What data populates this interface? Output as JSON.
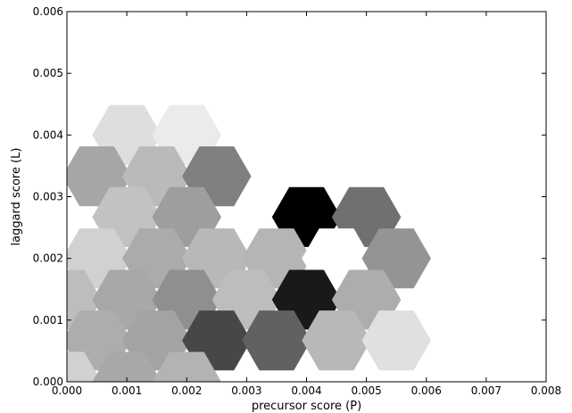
{
  "chart_data": {
    "type": "heatmap",
    "subtype": "hexbin",
    "title": "",
    "xlabel": "precursor score (P)",
    "ylabel": "laggard score (L)",
    "xlim": [
      0,
      0.008
    ],
    "ylim": [
      0,
      0.006
    ],
    "xticks": [
      "0.000",
      "0.001",
      "0.002",
      "0.003",
      "0.004",
      "0.005",
      "0.006",
      "0.007",
      "0.008"
    ],
    "yticks": [
      "0.000",
      "0.001",
      "0.002",
      "0.003",
      "0.004",
      "0.005",
      "0.006"
    ],
    "grid": false,
    "colormap": "gray_r",
    "hex_radius_x": 0.000577,
    "hexes": [
      {
        "x": 0.001,
        "y": 0.004,
        "density": 0.13
      },
      {
        "x": 0.002,
        "y": 0.004,
        "density": 0.08
      },
      {
        "x": 0.0005,
        "y": 0.00333,
        "density": 0.35
      },
      {
        "x": 0.0015,
        "y": 0.00333,
        "density": 0.27
      },
      {
        "x": 0.0025,
        "y": 0.00333,
        "density": 0.5
      },
      {
        "x": 0.001,
        "y": 0.00267,
        "density": 0.24
      },
      {
        "x": 0.002,
        "y": 0.00267,
        "density": 0.38
      },
      {
        "x": 0.004,
        "y": 0.00267,
        "density": 1.0
      },
      {
        "x": 0.005,
        "y": 0.00267,
        "density": 0.56
      },
      {
        "x": 0.0005,
        "y": 0.002,
        "density": 0.18
      },
      {
        "x": 0.0015,
        "y": 0.002,
        "density": 0.33
      },
      {
        "x": 0.0025,
        "y": 0.002,
        "density": 0.28
      },
      {
        "x": 0.0035,
        "y": 0.002,
        "density": 0.29
      },
      {
        "x": 0.0045,
        "y": 0.002,
        "density": 0.0
      },
      {
        "x": 0.0055,
        "y": 0.002,
        "density": 0.42
      },
      {
        "x": 0.0,
        "y": 0.00133,
        "density": 0.26
      },
      {
        "x": 0.001,
        "y": 0.00133,
        "density": 0.34
      },
      {
        "x": 0.002,
        "y": 0.00133,
        "density": 0.44
      },
      {
        "x": 0.003,
        "y": 0.00133,
        "density": 0.26
      },
      {
        "x": 0.004,
        "y": 0.00133,
        "density": 0.9
      },
      {
        "x": 0.005,
        "y": 0.00133,
        "density": 0.32
      },
      {
        "x": 0.0005,
        "y": 0.00067,
        "density": 0.32
      },
      {
        "x": 0.0015,
        "y": 0.00067,
        "density": 0.36
      },
      {
        "x": 0.0025,
        "y": 0.00067,
        "density": 0.72
      },
      {
        "x": 0.0035,
        "y": 0.00067,
        "density": 0.62
      },
      {
        "x": 0.0045,
        "y": 0.00067,
        "density": 0.28
      },
      {
        "x": 0.0055,
        "y": 0.00067,
        "density": 0.12
      },
      {
        "x": 0.0,
        "y": 0.0,
        "density": 0.18
      },
      {
        "x": 0.001,
        "y": 0.0,
        "density": 0.34
      },
      {
        "x": 0.002,
        "y": 0.0,
        "density": 0.3
      }
    ]
  }
}
